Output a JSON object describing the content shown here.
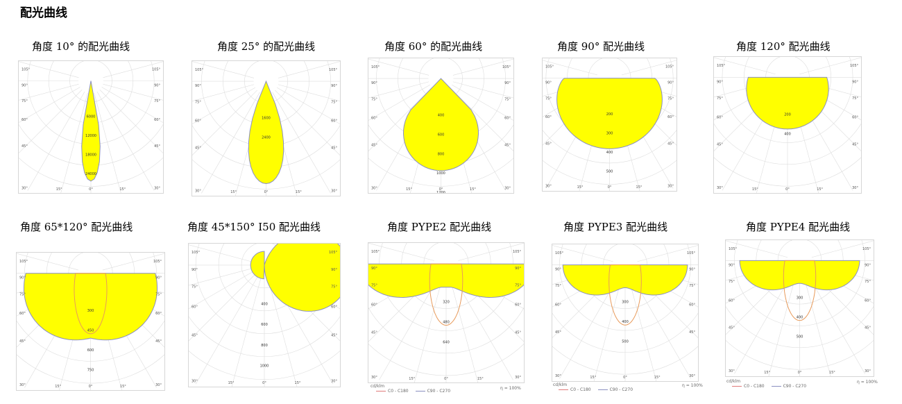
{
  "header": {
    "title": "配光曲线"
  },
  "colors": {
    "fill": "#ffff00",
    "outline": "#8a8fc0",
    "c90_line": "#e89a5a",
    "grid": "#dddddd",
    "border": "#d6d6d6"
  },
  "charts": [
    {
      "title": "角度 10° 的配光曲线",
      "angle_labels": [
        "105°",
        "90°",
        "75°",
        "60°",
        "45°",
        "30°",
        "15°",
        "0°"
      ],
      "ring_values": [
        "6000",
        "12000",
        "18000",
        "24000"
      ],
      "beam_deg": 10
    },
    {
      "title": "角度 25° 的配光曲线",
      "angle_labels": [
        "105°",
        "90°",
        "75°",
        "60°",
        "45°",
        "30°",
        "15°",
        "0°"
      ],
      "ring_values": [
        "1600",
        "2400"
      ],
      "beam_deg": 25
    },
    {
      "title": "角度 60° 的配光曲线",
      "angle_labels": [
        "105°",
        "90°",
        "75°",
        "60°",
        "45°",
        "30°",
        "15°",
        "0°"
      ],
      "ring_values": [
        "400",
        "600",
        "800",
        "1000",
        "1200"
      ],
      "beam_deg": 60
    },
    {
      "title": "角度 90° 配光曲线",
      "angle_labels": [
        "105°",
        "90°",
        "75°",
        "60°",
        "45°",
        "30°",
        "15°",
        "0°"
      ],
      "ring_values": [
        "200",
        "300",
        "400",
        "500"
      ],
      "beam_deg": 90
    },
    {
      "title": "角度 120° 配光曲线",
      "angle_labels": [
        "105°",
        "90°",
        "75°",
        "60°",
        "45°",
        "30°",
        "15°",
        "0°"
      ],
      "ring_values": [
        "200",
        "400"
      ],
      "beam_deg": 120
    },
    {
      "title": "角度 65*120° 配光曲线",
      "angle_labels": [
        "105°",
        "90°",
        "75°",
        "60°",
        "45°",
        "30°",
        "15°",
        "0°"
      ],
      "ring_values": [
        "300",
        "450",
        "600",
        "750"
      ],
      "beam_deg": 120
    },
    {
      "title": "角度 45*150° I50 配光曲线",
      "angle_labels": [
        "105°",
        "90°",
        "75°",
        "60°",
        "45°",
        "30°",
        "15°",
        "0°"
      ],
      "ring_values": [
        "400",
        "600",
        "800",
        "1000"
      ],
      "beam_deg": 150
    },
    {
      "title": "角度 PYPE2 配光曲线",
      "angle_labels": [
        "105°",
        "90°",
        "75°",
        "60°",
        "45°",
        "30°",
        "15°",
        "0°"
      ],
      "ring_values": [
        "320",
        "480",
        "640"
      ],
      "beam_deg": 160,
      "footer": {
        "unit": "cd/klm",
        "legend_c0": "C0 - C180",
        "legend_c90": "C90 - C270",
        "efficiency": "η = 100%"
      }
    },
    {
      "title": "角度 PYPE3 配光曲线",
      "angle_labels": [
        "105°",
        "90°",
        "75°",
        "60°",
        "45°",
        "30°",
        "15°",
        "0°"
      ],
      "ring_values": [
        "300",
        "400",
        "500"
      ],
      "beam_deg": 150,
      "footer": {
        "unit": "cd/klm",
        "legend_c0": "C0 - C180",
        "legend_c90": "C90 - C270",
        "efficiency": "η = 100%"
      }
    },
    {
      "title": "角度 PYPE4 配光曲线",
      "angle_labels": [
        "105°",
        "90°",
        "75°",
        "60°",
        "45°",
        "30°",
        "15°",
        "0°"
      ],
      "ring_values": [
        "300",
        "400",
        "500"
      ],
      "beam_deg": 150,
      "footer": {
        "unit": "cd/klm",
        "legend_c0": "C0 - C180",
        "legend_c90": "C90 - C270",
        "efficiency": "η = 100%"
      }
    }
  ]
}
